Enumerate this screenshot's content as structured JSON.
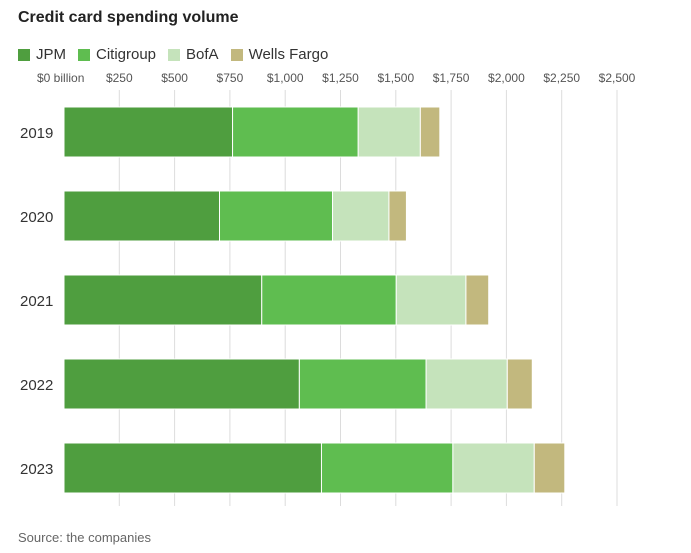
{
  "title": "Credit card spending volume",
  "source": "Source: the companies",
  "colors": {
    "JPM": "#4f9e3f",
    "Citigroup": "#5fbd50",
    "BofA": "#c5e3bb",
    "Wells Fargo": "#c2b87e",
    "grid": "#dcdcdc"
  },
  "chart_data": {
    "type": "bar",
    "orientation": "horizontal",
    "stacked": true,
    "title": "Credit card spending volume",
    "unit": "billion",
    "categories": [
      "2019",
      "2020",
      "2021",
      "2022",
      "2023"
    ],
    "series": [
      {
        "name": "JPM",
        "values": [
          762,
          703,
          894,
          1064,
          1164
        ]
      },
      {
        "name": "Citigroup",
        "values": [
          568,
          511,
          608,
          573,
          594
        ]
      },
      {
        "name": "BofA",
        "values": [
          281,
          255,
          315,
          367,
          368
        ]
      },
      {
        "name": "Wells Fargo",
        "values": [
          88,
          79,
          103,
          113,
          138
        ]
      }
    ],
    "xlim": [
      0,
      2500
    ],
    "xticks": [
      0,
      250,
      500,
      750,
      1000,
      1250,
      1500,
      1750,
      2000,
      2250,
      2500
    ],
    "xtick_labels": [
      "$0 billion",
      "$250",
      "$500",
      "$750",
      "$1,000",
      "$1,250",
      "$1,500",
      "$1,750",
      "$2,000",
      "$2,250",
      "$2,500"
    ],
    "grid": true,
    "legend": "top-left"
  }
}
